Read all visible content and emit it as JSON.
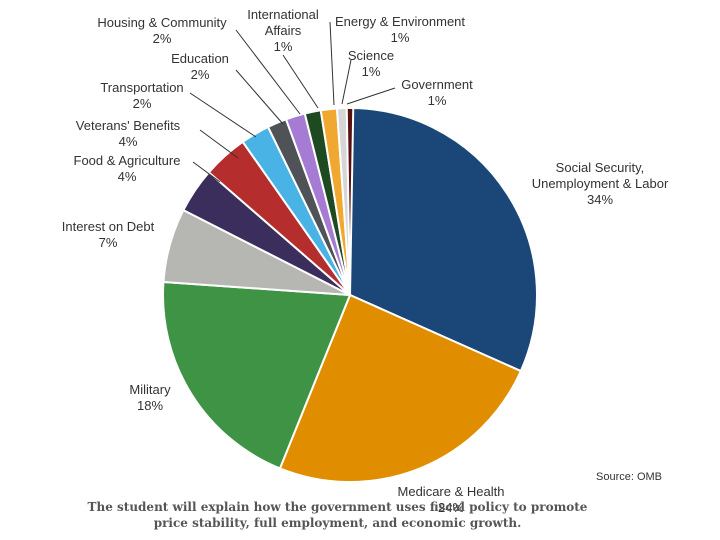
{
  "chart_data": {
    "type": "pie",
    "slices": [
      {
        "label": "Social Security,\nUnemployment & Labor",
        "value_label": "34%",
        "value": 34,
        "color": "#1b4778"
      },
      {
        "label": "Medicare & Health",
        "value_label": "24%",
        "value": 24,
        "color": "#e08e00"
      },
      {
        "label": "Military",
        "value_label": "18%",
        "value": 18,
        "color": "#3e9344"
      },
      {
        "label": "Interest on Debt",
        "value_label": "7%",
        "value": 7,
        "color": "#b6b6b2"
      },
      {
        "label": "Food & Agriculture",
        "value_label": "4%",
        "value": 4,
        "color": "#3c2e5c"
      },
      {
        "label": "Veterans' Benefits",
        "value_label": "4%",
        "value": 4,
        "color": "#b52d2d"
      },
      {
        "label": "Transportation",
        "value_label": "2%",
        "value": 2,
        "color": "#4ab3e6"
      },
      {
        "label": "Education",
        "value_label": "2%",
        "value": 2,
        "color": "#4f5357"
      },
      {
        "label": "Housing & Community",
        "value_label": "2%",
        "value": 2,
        "color": "#a57bd4"
      },
      {
        "label": "International\nAffairs",
        "value_label": "1%",
        "value": 1,
        "color": "#1e4a22"
      },
      {
        "label": "Energy & Environment",
        "value_label": "1%",
        "value": 1,
        "color": "#f0a830"
      },
      {
        "label": "Science",
        "value_label": "1%",
        "value": 1,
        "color": "#d6d6d6"
      },
      {
        "label": "Government",
        "value_label": "1%",
        "value": 1,
        "color": "#5a1010"
      }
    ],
    "source": "Source: OMB"
  },
  "caption": {
    "line1": "The student will explain how the government uses fiscal policy to promote",
    "line2": "price stability, full employment, and economic growth."
  }
}
